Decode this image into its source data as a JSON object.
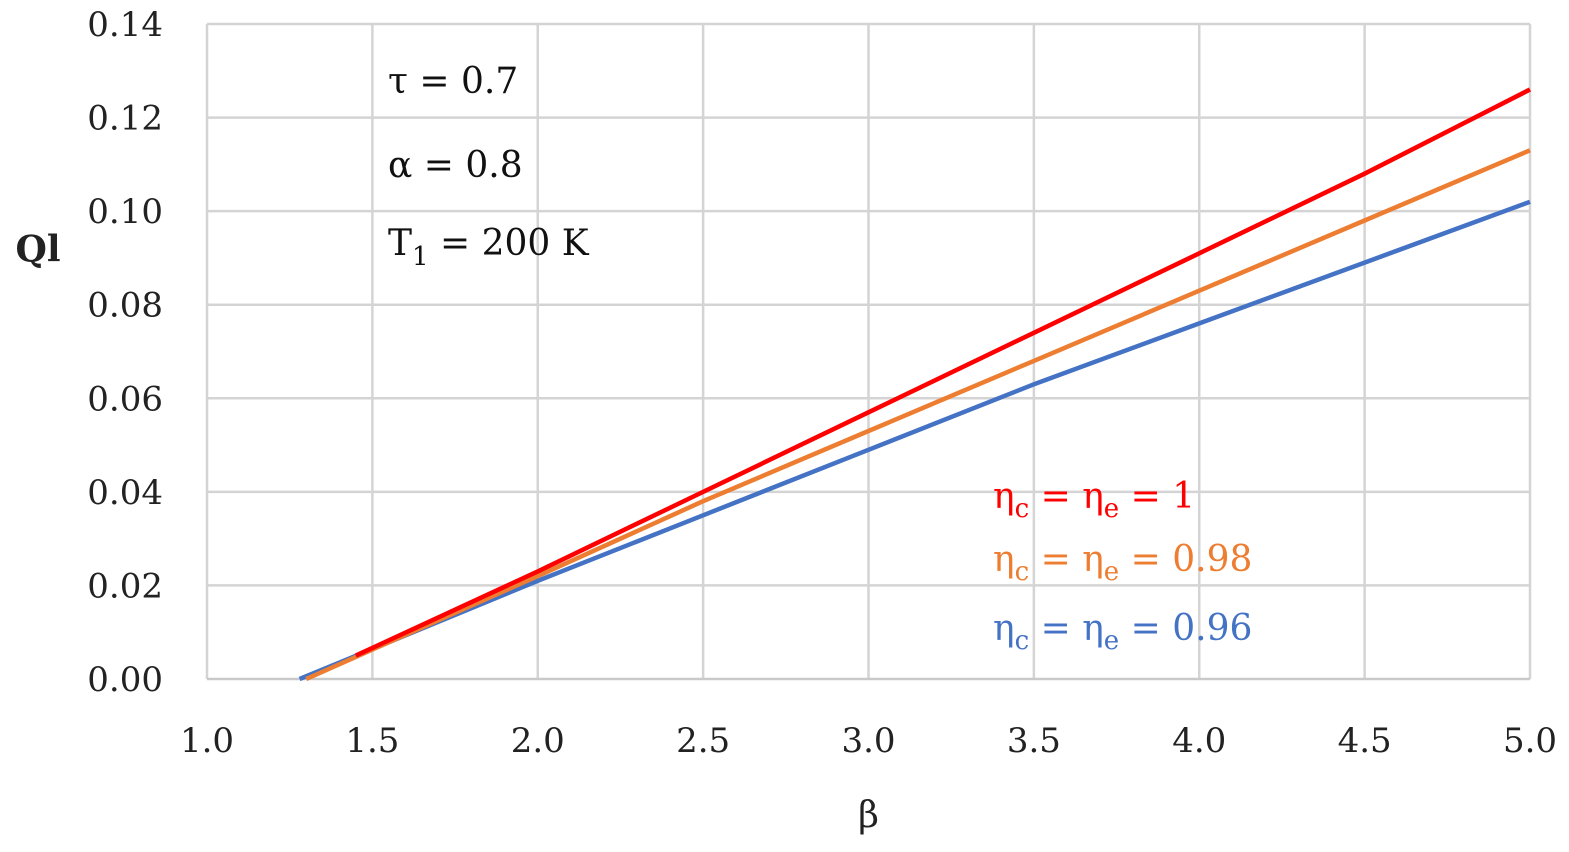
{
  "chart_data": {
    "type": "line",
    "xlabel": "β",
    "ylabel": "Ql",
    "xlim": [
      1.0,
      5.0
    ],
    "ylim": [
      0.0,
      0.14
    ],
    "x_ticks": [
      "1.0",
      "1.5",
      "2.0",
      "2.5",
      "3.0",
      "3.5",
      "4.0",
      "4.5",
      "5.0"
    ],
    "y_ticks": [
      "0.00",
      "0.02",
      "0.04",
      "0.06",
      "0.08",
      "0.10",
      "0.12",
      "0.14"
    ],
    "grid": true,
    "legend_position": "bottom-right inside plot",
    "annotations": [
      {
        "symbol": "τ",
        "sub": "",
        "text": " = 0.7"
      },
      {
        "symbol": "α",
        "sub": "",
        "text": " = 0.8"
      },
      {
        "symbol": "T",
        "sub": "1",
        "text": " = 200 K"
      }
    ],
    "series": [
      {
        "label_parts": {
          "a": "η",
          "a_sub": "c",
          "b": "η",
          "b_sub": "e",
          "value": "1"
        },
        "color": "#ff0000",
        "x": [
          1.45,
          2.0,
          2.5,
          3.0,
          3.5,
          4.0,
          4.5,
          5.0
        ],
        "y": [
          0.005,
          0.023,
          0.04,
          0.057,
          0.074,
          0.091,
          0.108,
          0.126
        ]
      },
      {
        "label_parts": {
          "a": "η",
          "a_sub": "c",
          "b": "η",
          "b_sub": "e",
          "value": "0.98"
        },
        "color": "#ed7d31",
        "x": [
          1.3,
          2.0,
          2.5,
          3.0,
          3.5,
          4.0,
          4.5,
          5.0
        ],
        "y": [
          0.0,
          0.022,
          0.038,
          0.053,
          0.068,
          0.083,
          0.098,
          0.113
        ]
      },
      {
        "label_parts": {
          "a": "η",
          "a_sub": "c",
          "b": "η",
          "b_sub": "e",
          "value": "0.96"
        },
        "color": "#4472c4",
        "x": [
          1.28,
          2.0,
          2.5,
          3.0,
          3.5,
          4.0,
          4.5,
          5.0
        ],
        "y": [
          0.0,
          0.021,
          0.035,
          0.049,
          0.063,
          0.076,
          0.089,
          0.102
        ]
      }
    ]
  }
}
